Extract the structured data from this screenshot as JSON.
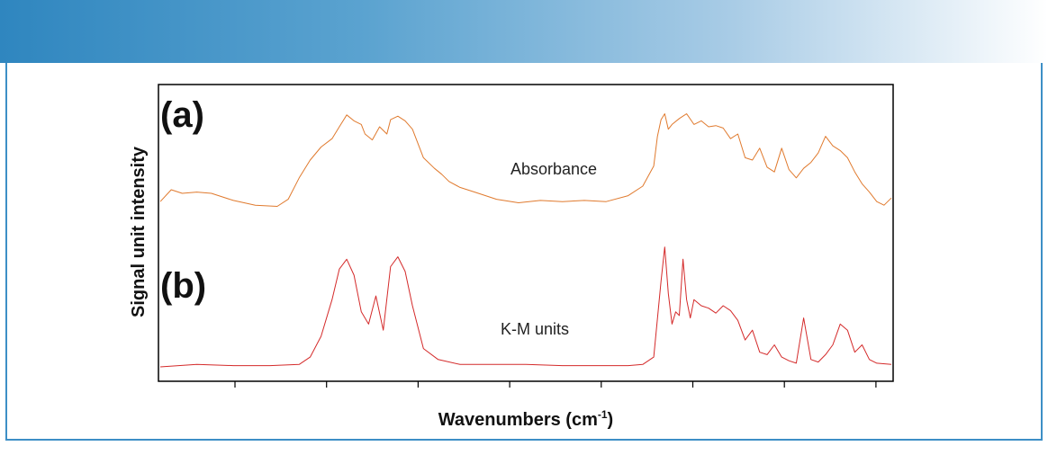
{
  "chart_data": {
    "type": "line",
    "title": "",
    "xlabel": "Wavenumbers (cm",
    "xlabel_sup": "-1",
    "xlabel_close": ")",
    "ylabel": "Signal unit intensity",
    "x_tick_count": 8,
    "x_range": [
      0,
      100
    ],
    "y_range": [
      0,
      100
    ],
    "grid": false,
    "series": [
      {
        "name": "Absorbance",
        "panel_label": "(a)",
        "color": "#e07a2e",
        "x": [
          0,
          1.5,
          3,
          5,
          7,
          10,
          13,
          16,
          17.5,
          19,
          20.5,
          22,
          23.5,
          24.5,
          25.5,
          26.5,
          27.5,
          28,
          29,
          30,
          31,
          31.5,
          32.5,
          33.5,
          34.5,
          36,
          37.5,
          38.5,
          39.5,
          41,
          43,
          46,
          49,
          52,
          55,
          58,
          61,
          64,
          66,
          67.5,
          68,
          68.5,
          69,
          69.5,
          70,
          71,
          72,
          73,
          74,
          75,
          76,
          77,
          78,
          79,
          80,
          81,
          82,
          83,
          84,
          85,
          86,
          87,
          88,
          89,
          90,
          91,
          92,
          93,
          94,
          95,
          96,
          97,
          98,
          99,
          100
        ],
        "y": [
          15,
          25,
          22,
          23,
          22,
          16,
          12,
          11,
          17,
          35,
          50,
          61,
          68,
          78,
          88,
          83,
          80,
          72,
          67,
          78,
          72,
          84,
          87,
          83,
          76,
          52,
          43,
          38,
          32,
          27,
          23,
          17,
          14,
          16,
          15,
          16,
          15,
          20,
          28,
          45,
          70,
          84,
          89,
          76,
          80,
          85,
          89,
          80,
          83,
          78,
          79,
          77,
          68,
          72,
          52,
          50,
          60,
          44,
          40,
          60,
          42,
          35,
          43,
          48,
          56,
          70,
          62,
          58,
          52,
          40,
          30,
          23,
          15,
          12,
          18
        ]
      },
      {
        "name": "K-M units",
        "panel_label": "(b)",
        "color": "#d42a2a",
        "x": [
          0,
          5,
          10,
          15,
          19,
          20.5,
          22,
          23.5,
          24.5,
          25.5,
          26.5,
          27.5,
          28.5,
          29.5,
          30.5,
          31.5,
          32.5,
          33.5,
          34.5,
          36,
          38,
          41,
          45,
          50,
          55,
          60,
          64,
          66,
          67.5,
          68.5,
          69,
          69.5,
          70,
          70.5,
          71,
          71.5,
          72,
          72.5,
          73,
          74,
          75,
          76,
          77,
          78,
          79,
          80,
          81,
          82,
          83,
          84,
          85,
          86,
          87,
          88,
          89,
          90,
          91,
          92,
          93,
          94,
          95,
          96,
          97,
          98,
          100
        ],
        "y": [
          0,
          2,
          1,
          1,
          2,
          8,
          25,
          55,
          80,
          88,
          75,
          45,
          35,
          58,
          30,
          82,
          90,
          78,
          50,
          15,
          6,
          2,
          2,
          2,
          1,
          1,
          1,
          2,
          8,
          70,
          98,
          60,
          35,
          45,
          42,
          88,
          55,
          40,
          55,
          50,
          48,
          44,
          50,
          46,
          38,
          22,
          30,
          12,
          10,
          18,
          8,
          5,
          3,
          40,
          6,
          4,
          10,
          18,
          35,
          30,
          12,
          18,
          6,
          3,
          2
        ]
      }
    ]
  }
}
